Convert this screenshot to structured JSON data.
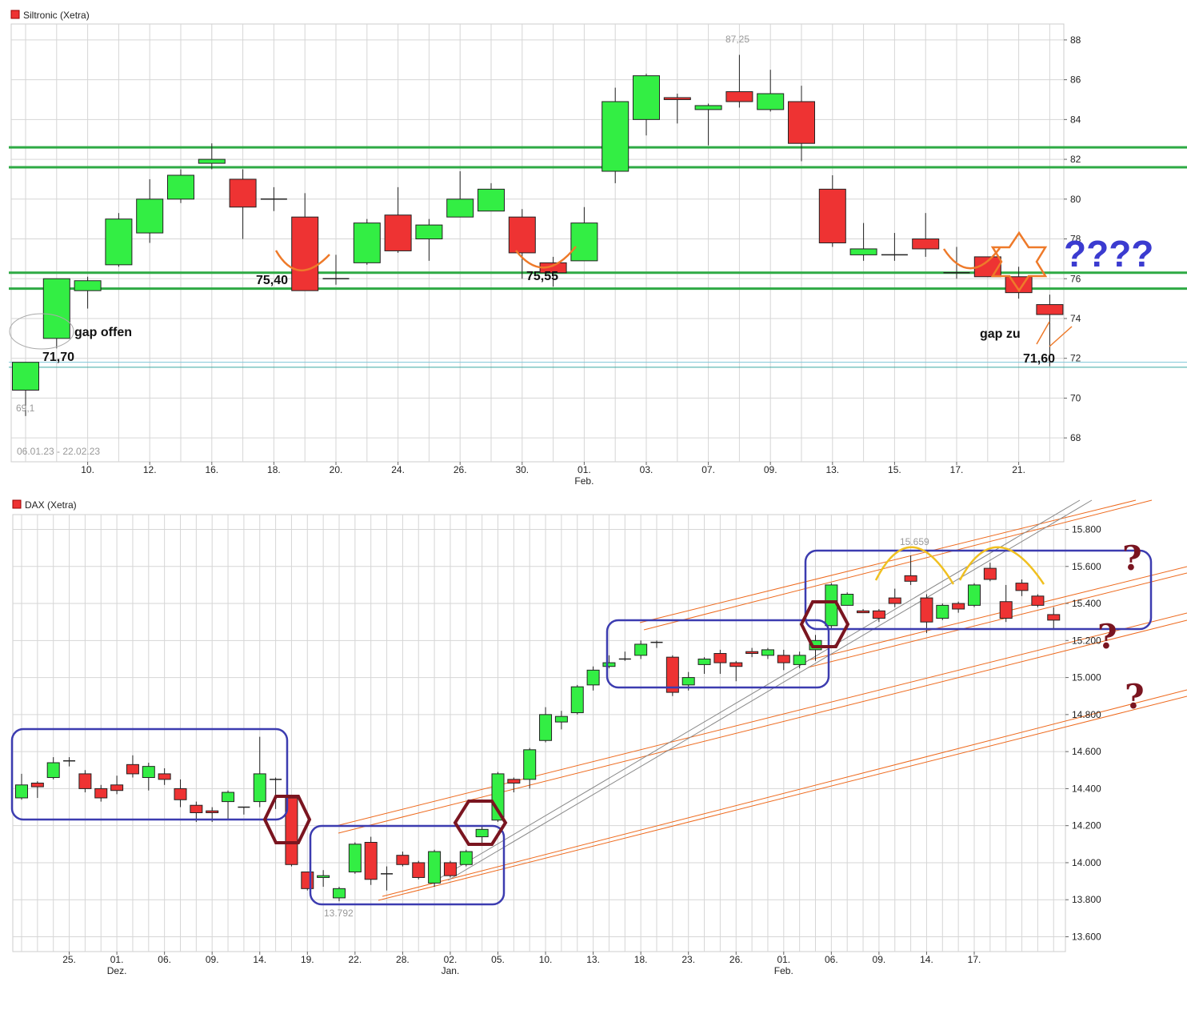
{
  "colors": {
    "up": "#33ee44",
    "down": "#ee3333",
    "grid": "#d6d6d6",
    "support": "#2eaa44",
    "channel": "#ee6a1e",
    "box": "#3c3cb0",
    "hexagon": "#7a1520",
    "trend_gray": "#888888",
    "arc_yellow": "#f0c020"
  },
  "chart_data": [
    {
      "type": "candlestick",
      "title": "Siltronic (Xetra)",
      "date_range_label": "06.01.23 - 22.02.23",
      "ylim": [
        66.8,
        88.8
      ],
      "y_ticks": [
        68,
        70,
        72,
        74,
        76,
        78,
        80,
        82,
        84,
        86,
        88
      ],
      "x_ticks": [
        {
          "i": 2,
          "label": "10."
        },
        {
          "i": 4,
          "label": "12."
        },
        {
          "i": 6,
          "label": "16."
        },
        {
          "i": 8,
          "label": "18."
        },
        {
          "i": 10,
          "label": "20."
        },
        {
          "i": 12,
          "label": "24."
        },
        {
          "i": 14,
          "label": "26."
        },
        {
          "i": 16,
          "label": "30."
        },
        {
          "i": 18,
          "label": "01.",
          "sub": "Feb."
        },
        {
          "i": 20,
          "label": "03."
        },
        {
          "i": 22,
          "label": "07."
        },
        {
          "i": 24,
          "label": "09."
        },
        {
          "i": 26,
          "label": "13."
        },
        {
          "i": 28,
          "label": "15."
        },
        {
          "i": 30,
          "label": "17."
        },
        {
          "i": 32,
          "label": "21."
        }
      ],
      "candles": [
        {
          "o": 70.4,
          "h": 71.8,
          "l": 69.1,
          "c": 71.8
        },
        {
          "o": 73.0,
          "h": 76.0,
          "l": 72.5,
          "c": 76.0
        },
        {
          "o": 75.4,
          "h": 76.1,
          "l": 74.5,
          "c": 75.9
        },
        {
          "o": 76.7,
          "h": 79.3,
          "l": 76.6,
          "c": 79.0
        },
        {
          "o": 78.3,
          "h": 81.0,
          "l": 77.8,
          "c": 80.0
        },
        {
          "o": 80.0,
          "h": 81.5,
          "l": 79.8,
          "c": 81.2
        },
        {
          "o": 81.8,
          "h": 82.8,
          "l": 81.5,
          "c": 82.0
        },
        {
          "o": 81.0,
          "h": 81.5,
          "l": 78.0,
          "c": 79.6
        },
        {
          "o": 80.0,
          "h": 80.6,
          "l": 79.4,
          "c": 80.0
        },
        {
          "o": 79.1,
          "h": 80.3,
          "l": 75.4,
          "c": 75.4
        },
        {
          "o": 76.0,
          "h": 77.2,
          "l": 75.7,
          "c": 76.0
        },
        {
          "o": 76.8,
          "h": 79.0,
          "l": 76.7,
          "c": 78.8
        },
        {
          "o": 79.2,
          "h": 80.6,
          "l": 77.3,
          "c": 77.4
        },
        {
          "o": 78.0,
          "h": 79.0,
          "l": 76.9,
          "c": 78.7
        },
        {
          "o": 79.1,
          "h": 81.4,
          "l": 79.1,
          "c": 80.0
        },
        {
          "o": 79.4,
          "h": 80.8,
          "l": 79.4,
          "c": 80.5
        },
        {
          "o": 79.1,
          "h": 79.5,
          "l": 76.0,
          "c": 77.3
        },
        {
          "o": 76.8,
          "h": 77.1,
          "l": 75.6,
          "c": 76.3
        },
        {
          "o": 76.9,
          "h": 79.6,
          "l": 76.9,
          "c": 78.8
        },
        {
          "o": 81.4,
          "h": 85.6,
          "l": 80.8,
          "c": 84.9
        },
        {
          "o": 84.0,
          "h": 86.3,
          "l": 83.2,
          "c": 86.2
        },
        {
          "o": 85.1,
          "h": 85.3,
          "l": 83.8,
          "c": 85.0
        },
        {
          "o": 84.5,
          "h": 84.8,
          "l": 82.7,
          "c": 84.7
        },
        {
          "o": 85.4,
          "h": 87.25,
          "l": 84.6,
          "c": 84.9
        },
        {
          "o": 84.5,
          "h": 86.5,
          "l": 84.4,
          "c": 85.3
        },
        {
          "o": 84.9,
          "h": 85.7,
          "l": 81.9,
          "c": 82.8
        },
        {
          "o": 80.5,
          "h": 81.2,
          "l": 77.6,
          "c": 77.8
        },
        {
          "o": 77.2,
          "h": 78.8,
          "l": 76.9,
          "c": 77.5
        },
        {
          "o": 77.2,
          "h": 78.3,
          "l": 76.9,
          "c": 77.2
        },
        {
          "o": 78.0,
          "h": 79.3,
          "l": 77.1,
          "c": 77.5
        },
        {
          "o": 76.3,
          "h": 77.6,
          "l": 76.0,
          "c": 76.3
        },
        {
          "o": 77.1,
          "h": 77.1,
          "l": 76.1,
          "c": 76.1
        },
        {
          "o": 76.1,
          "h": 76.6,
          "l": 75.0,
          "c": 75.3
        },
        {
          "o": 74.7,
          "h": 75.2,
          "l": 71.6,
          "c": 74.2
        }
      ],
      "support_lines": [
        82.6,
        81.6,
        76.3,
        75.5
      ],
      "gap_lines": [
        71.8,
        71.55
      ],
      "labels": {
        "low_label": "69,1",
        "high_label": "87,25",
        "v1": "71,70",
        "v2": "75,40",
        "v3": "75,55",
        "v4": "71,60",
        "gap_open": "gap offen",
        "gap_closed": "gap zu",
        "question": "????"
      }
    },
    {
      "type": "candlestick",
      "title": "DAX (Xetra)",
      "ylim": [
        13520,
        15880
      ],
      "y_ticks": [
        {
          "v": 13600,
          "label": "13.600"
        },
        {
          "v": 13800,
          "label": "13.800"
        },
        {
          "v": 14000,
          "label": "14.000"
        },
        {
          "v": 14200,
          "label": "14.200"
        },
        {
          "v": 14400,
          "label": "14.400"
        },
        {
          "v": 14600,
          "label": "14.600"
        },
        {
          "v": 14800,
          "label": "14.800"
        },
        {
          "v": 15000,
          "label": "15.000"
        },
        {
          "v": 15200,
          "label": "15.200"
        },
        {
          "v": 15400,
          "label": "15.400"
        },
        {
          "v": 15600,
          "label": "15.600"
        },
        {
          "v": 15800,
          "label": "15.800"
        }
      ],
      "x_ticks": [
        {
          "i": 3,
          "label": "25."
        },
        {
          "i": 6,
          "label": "01.",
          "sub": "Dez."
        },
        {
          "i": 9,
          "label": "06."
        },
        {
          "i": 12,
          "label": "09."
        },
        {
          "i": 15,
          "label": "14."
        },
        {
          "i": 18,
          "label": "19."
        },
        {
          "i": 21,
          "label": "22."
        },
        {
          "i": 24,
          "label": "28."
        },
        {
          "i": 27,
          "label": "02.",
          "sub": "Jan."
        },
        {
          "i": 30,
          "label": "05."
        },
        {
          "i": 33,
          "label": "10."
        },
        {
          "i": 36,
          "label": "13."
        },
        {
          "i": 39,
          "label": "18."
        },
        {
          "i": 42,
          "label": "23."
        },
        {
          "i": 45,
          "label": "26."
        },
        {
          "i": 48,
          "label": "01.",
          "sub": "Feb."
        },
        {
          "i": 51,
          "label": "06."
        },
        {
          "i": 54,
          "label": "09."
        },
        {
          "i": 57,
          "label": "14."
        },
        {
          "i": 60,
          "label": "17."
        }
      ],
      "candles": [
        {
          "o": 14350,
          "h": 14480,
          "l": 14340,
          "c": 14420
        },
        {
          "o": 14430,
          "h": 14440,
          "l": 14350,
          "c": 14410
        },
        {
          "o": 14460,
          "h": 14570,
          "l": 14450,
          "c": 14540
        },
        {
          "o": 14550,
          "h": 14570,
          "l": 14520,
          "c": 14550
        },
        {
          "o": 14480,
          "h": 14500,
          "l": 14380,
          "c": 14400
        },
        {
          "o": 14400,
          "h": 14420,
          "l": 14330,
          "c": 14350
        },
        {
          "o": 14420,
          "h": 14470,
          "l": 14370,
          "c": 14390
        },
        {
          "o": 14530,
          "h": 14580,
          "l": 14460,
          "c": 14480
        },
        {
          "o": 14460,
          "h": 14540,
          "l": 14390,
          "c": 14520
        },
        {
          "o": 14480,
          "h": 14510,
          "l": 14420,
          "c": 14450
        },
        {
          "o": 14400,
          "h": 14450,
          "l": 14300,
          "c": 14340
        },
        {
          "o": 14310,
          "h": 14330,
          "l": 14220,
          "c": 14270
        },
        {
          "o": 14280,
          "h": 14300,
          "l": 14220,
          "c": 14270
        },
        {
          "o": 14330,
          "h": 14390,
          "l": 14230,
          "c": 14380
        },
        {
          "o": 14300,
          "h": 14300,
          "l": 14260,
          "c": 14300
        },
        {
          "o": 14330,
          "h": 14680,
          "l": 14300,
          "c": 14480
        },
        {
          "o": 14450,
          "h": 14460,
          "l": 14290,
          "c": 14450
        },
        {
          "o": 14350,
          "h": 14360,
          "l": 13980,
          "c": 13990
        },
        {
          "o": 13950,
          "h": 13950,
          "l": 13850,
          "c": 13860
        },
        {
          "o": 13920,
          "h": 13960,
          "l": 13870,
          "c": 13930
        },
        {
          "o": 13810,
          "h": 13870,
          "l": 13792,
          "c": 13860
        },
        {
          "o": 13950,
          "h": 14110,
          "l": 13940,
          "c": 14100
        },
        {
          "o": 14110,
          "h": 14140,
          "l": 13880,
          "c": 13910
        },
        {
          "o": 13940,
          "h": 13980,
          "l": 13850,
          "c": 13940
        },
        {
          "o": 14040,
          "h": 14060,
          "l": 13980,
          "c": 13990
        },
        {
          "o": 14000,
          "h": 14010,
          "l": 13910,
          "c": 13920
        },
        {
          "o": 13890,
          "h": 14070,
          "l": 13870,
          "c": 14060
        },
        {
          "o": 14000,
          "h": 14010,
          "l": 13920,
          "c": 13930
        },
        {
          "o": 13990,
          "h": 14070,
          "l": 13980,
          "c": 14060
        },
        {
          "o": 14140,
          "h": 14200,
          "l": 14100,
          "c": 14180
        },
        {
          "o": 14230,
          "h": 14490,
          "l": 14220,
          "c": 14480
        },
        {
          "o": 14450,
          "h": 14460,
          "l": 14380,
          "c": 14430
        },
        {
          "o": 14450,
          "h": 14620,
          "l": 14400,
          "c": 14610
        },
        {
          "o": 14660,
          "h": 14840,
          "l": 14650,
          "c": 14800
        },
        {
          "o": 14760,
          "h": 14820,
          "l": 14720,
          "c": 14790
        },
        {
          "o": 14810,
          "h": 14960,
          "l": 14800,
          "c": 14950
        },
        {
          "o": 14960,
          "h": 15060,
          "l": 14930,
          "c": 15040
        },
        {
          "o": 15060,
          "h": 15120,
          "l": 15050,
          "c": 15080
        },
        {
          "o": 15100,
          "h": 15140,
          "l": 15090,
          "c": 15100
        },
        {
          "o": 15120,
          "h": 15200,
          "l": 15100,
          "c": 15180
        },
        {
          "o": 15190,
          "h": 15200,
          "l": 15160,
          "c": 15190
        },
        {
          "o": 15110,
          "h": 15120,
          "l": 14900,
          "c": 14920
        },
        {
          "o": 14960,
          "h": 15030,
          "l": 14930,
          "c": 15000
        },
        {
          "o": 15070,
          "h": 15110,
          "l": 15020,
          "c": 15100
        },
        {
          "o": 15130,
          "h": 15150,
          "l": 15020,
          "c": 15080
        },
        {
          "o": 15080,
          "h": 15090,
          "l": 14980,
          "c": 15060
        },
        {
          "o": 15140,
          "h": 15160,
          "l": 15110,
          "c": 15130
        },
        {
          "o": 15120,
          "h": 15160,
          "l": 15100,
          "c": 15150
        },
        {
          "o": 15120,
          "h": 15150,
          "l": 15040,
          "c": 15080
        },
        {
          "o": 15070,
          "h": 15140,
          "l": 15050,
          "c": 15120
        },
        {
          "o": 15150,
          "h": 15230,
          "l": 15090,
          "c": 15200
        },
        {
          "o": 15280,
          "h": 15510,
          "l": 15260,
          "c": 15500
        },
        {
          "o": 15390,
          "h": 15460,
          "l": 15390,
          "c": 15450
        },
        {
          "o": 15360,
          "h": 15370,
          "l": 15350,
          "c": 15350
        },
        {
          "o": 15360,
          "h": 15370,
          "l": 15300,
          "c": 15320
        },
        {
          "o": 15430,
          "h": 15480,
          "l": 15380,
          "c": 15400
        },
        {
          "o": 15550,
          "h": 15659,
          "l": 15500,
          "c": 15520
        },
        {
          "o": 15430,
          "h": 15450,
          "l": 15240,
          "c": 15300
        },
        {
          "o": 15320,
          "h": 15400,
          "l": 15310,
          "c": 15390
        },
        {
          "o": 15400,
          "h": 15410,
          "l": 15350,
          "c": 15370
        },
        {
          "o": 15390,
          "h": 15510,
          "l": 15380,
          "c": 15500
        },
        {
          "o": 15590,
          "h": 15620,
          "l": 15520,
          "c": 15530
        },
        {
          "o": 15410,
          "h": 15500,
          "l": 15300,
          "c": 15320
        },
        {
          "o": 15510,
          "h": 15530,
          "l": 15440,
          "c": 15470
        },
        {
          "o": 15440,
          "h": 15450,
          "l": 15380,
          "c": 15390
        },
        {
          "o": 15340,
          "h": 15380,
          "l": 15260,
          "c": 15310
        }
      ],
      "labels": {
        "low_label": "13.792",
        "high_label": "15.659",
        "q1": "?",
        "q2": "?",
        "q3": "?"
      }
    }
  ]
}
